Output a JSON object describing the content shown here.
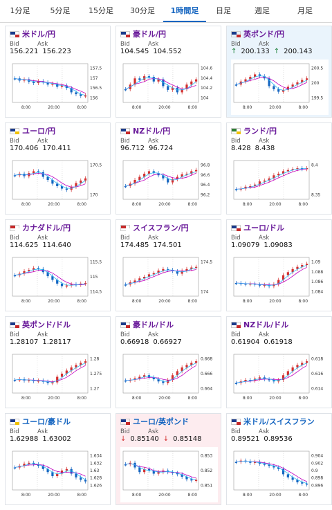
{
  "tabs": [
    {
      "label": "1分足",
      "active": false
    },
    {
      "label": "5分足",
      "active": false
    },
    {
      "label": "15分足",
      "active": false
    },
    {
      "label": "30分足",
      "active": false
    },
    {
      "label": "1時間足",
      "active": true
    },
    {
      "label": "日足",
      "active": false
    },
    {
      "label": "週足",
      "active": false
    },
    {
      "label": "月足",
      "active": false
    }
  ],
  "bid_label": "Bid",
  "ask_label": "Ask",
  "x_ticks": [
    "8:00",
    "20:00",
    "8:00"
  ],
  "cards": [
    {
      "pair": "米ドル/円",
      "bid": "156.221",
      "ask": "156.223",
      "dir": "",
      "flag": [
        "#1a3a8a",
        "#c62828"
      ],
      "y_ticks": [
        "157.5",
        "157",
        "156.5",
        "156"
      ],
      "trend": [
        0.35,
        0.42,
        0.38,
        0.46,
        0.5,
        0.44,
        0.48,
        0.55,
        0.52,
        0.62,
        0.58,
        0.66,
        0.8,
        0.86,
        0.92,
        0.9
      ],
      "hl": ""
    },
    {
      "pair": "豪ドル/円",
      "bid": "104.545",
      "ask": "104.552",
      "dir": "",
      "flag": [
        "#1a3a8a",
        "#c62828"
      ],
      "y_ticks": [
        "104.6",
        "104.4",
        "104.2",
        "104"
      ],
      "trend": [
        0.7,
        0.55,
        0.35,
        0.4,
        0.28,
        0.3,
        0.45,
        0.38,
        0.6,
        0.72,
        0.65,
        0.8,
        0.7,
        0.55,
        0.45,
        0.38
      ],
      "hl": ""
    },
    {
      "pair": "英ポンド/円",
      "bid": "200.133",
      "ask": "200.143",
      "dir": "up",
      "flag": [
        "#1a3a8a",
        "#c62828"
      ],
      "y_ticks": [
        "200.5",
        "200",
        "199.5"
      ],
      "trend": [
        0.55,
        0.45,
        0.38,
        0.3,
        0.22,
        0.28,
        0.35,
        0.6,
        0.7,
        0.78,
        0.72,
        0.62,
        0.55,
        0.48,
        0.4,
        0.35
      ],
      "hl": "blue"
    },
    {
      "pair": "ユーロ/円",
      "bid": "170.406",
      "ask": "170.411",
      "dir": "",
      "flag": [
        "#1a3a8a",
        "#f2c200"
      ],
      "y_ticks": [
        "170.5",
        "170"
      ],
      "trend": [
        0.35,
        0.3,
        0.38,
        0.28,
        0.22,
        0.25,
        0.4,
        0.5,
        0.62,
        0.7,
        0.78,
        0.82,
        0.72,
        0.6,
        0.52,
        0.45
      ],
      "hl": ""
    },
    {
      "pair": "NZドル/円",
      "bid": "96.712",
      "ask": "96.724",
      "dir": "",
      "flag": [
        "#1a3a8a",
        "#c62828"
      ],
      "y_ticks": [
        "96.8",
        "96.6",
        "96.4",
        "96.2"
      ],
      "trend": [
        0.7,
        0.62,
        0.5,
        0.4,
        0.3,
        0.22,
        0.28,
        0.35,
        0.45,
        0.58,
        0.48,
        0.4,
        0.32,
        0.3,
        0.22,
        0.18
      ],
      "hl": ""
    },
    {
      "pair": "ランド/円",
      "bid": "8.428",
      "ask": "8.438",
      "dir": "",
      "flag": [
        "#2e7d32",
        "#f2c200"
      ],
      "y_ticks": [
        "8.4",
        "8.35"
      ],
      "trend": [
        0.8,
        0.78,
        0.72,
        0.7,
        0.65,
        0.55,
        0.52,
        0.45,
        0.35,
        0.3,
        0.22,
        0.18,
        0.15,
        0.12,
        0.15,
        0.12
      ],
      "hl": ""
    },
    {
      "pair": "カナダドル/円",
      "bid": "114.625",
      "ask": "114.640",
      "dir": "",
      "flag": [
        "#c62828",
        "#ffffff"
      ],
      "y_ticks": [
        "115.5",
        "115",
        "114.5"
      ],
      "trend": [
        0.45,
        0.4,
        0.32,
        0.28,
        0.22,
        0.25,
        0.35,
        0.48,
        0.6,
        0.72,
        0.8,
        0.78,
        0.74,
        0.76,
        0.72,
        0.7
      ],
      "hl": ""
    },
    {
      "pair": "スイスフラン/円",
      "bid": "174.485",
      "ask": "174.501",
      "dir": "",
      "flag": [
        "#c62828",
        "#ffffff"
      ],
      "y_ticks": [
        "174.5",
        "174"
      ],
      "trend": [
        0.75,
        0.68,
        0.62,
        0.55,
        0.5,
        0.42,
        0.38,
        0.3,
        0.25,
        0.28,
        0.32,
        0.4,
        0.3,
        0.25,
        0.2,
        0.18
      ],
      "hl": ""
    },
    {
      "pair": "ユーロ/ドル",
      "bid": "1.09079",
      "ask": "1.09083",
      "dir": "",
      "flag": [
        "#1a3a8a",
        "#c62828"
      ],
      "y_ticks": [
        "1.09",
        "1.088",
        "1.086",
        "1.084"
      ],
      "trend": [
        0.7,
        0.72,
        0.74,
        0.72,
        0.75,
        0.78,
        0.76,
        0.8,
        0.74,
        0.6,
        0.45,
        0.35,
        0.25,
        0.18,
        0.12,
        0.08
      ],
      "hl": ""
    },
    {
      "pair": "英ポンド/ドル",
      "bid": "1.28107",
      "ask": "1.28117",
      "dir": "",
      "flag": [
        "#1a3a8a",
        "#c62828"
      ],
      "y_ticks": [
        "1.28",
        "1.275",
        "1.27"
      ],
      "trend": [
        0.7,
        0.68,
        0.72,
        0.7,
        0.74,
        0.72,
        0.76,
        0.8,
        0.78,
        0.6,
        0.5,
        0.4,
        0.3,
        0.22,
        0.15,
        0.1
      ],
      "hl": ""
    },
    {
      "pair": "豪ドル/ドル",
      "bid": "0.66918",
      "ask": "0.66927",
      "dir": "",
      "flag": [
        "#1a3a8a",
        "#c62828"
      ],
      "y_ticks": [
        "0.668",
        "0.666",
        "0.664"
      ],
      "trend": [
        0.72,
        0.7,
        0.65,
        0.6,
        0.55,
        0.62,
        0.68,
        0.75,
        0.8,
        0.7,
        0.55,
        0.42,
        0.3,
        0.22,
        0.15,
        0.1
      ],
      "hl": ""
    },
    {
      "pair": "NZドル/ドル",
      "bid": "0.61904",
      "ask": "0.61918",
      "dir": "",
      "flag": [
        "#1a3a8a",
        "#c62828"
      ],
      "y_ticks": [
        "0.618",
        "0.616",
        "0.614"
      ],
      "trend": [
        0.8,
        0.75,
        0.7,
        0.72,
        0.66,
        0.62,
        0.68,
        0.7,
        0.75,
        0.7,
        0.55,
        0.42,
        0.3,
        0.22,
        0.15,
        0.1
      ],
      "hl": ""
    },
    {
      "pair": "ユーロ/豪ドル",
      "bid": "1.62988",
      "ask": "1.63002",
      "dir": "",
      "flag": [
        "#1a3a8a",
        "#f2c200"
      ],
      "y_ticks": [
        "1.634",
        "1.632",
        "1.63",
        "1.628",
        "1.626"
      ],
      "trend": [
        0.4,
        0.35,
        0.28,
        0.25,
        0.3,
        0.35,
        0.45,
        0.55,
        0.68,
        0.6,
        0.5,
        0.45,
        0.6,
        0.72,
        0.8,
        0.85
      ],
      "hl": ""
    },
    {
      "pair": "ユーロ/英ポンド",
      "bid": "0.85140",
      "ask": "0.85148",
      "dir": "down",
      "flag": [
        "#1a3a8a",
        "#c62828"
      ],
      "y_ticks": [
        "0.853",
        "0.852",
        "0.851"
      ],
      "trend": [
        0.3,
        0.25,
        0.4,
        0.55,
        0.45,
        0.5,
        0.6,
        0.55,
        0.5,
        0.55,
        0.58,
        0.62,
        0.7,
        0.78,
        0.82,
        0.8
      ],
      "hl": "red"
    },
    {
      "pair": "米ドル/スイスフラン",
      "bid": "0.89521",
      "ask": "0.89536",
      "dir": "",
      "flag": [
        "#1a3a8a",
        "#c62828"
      ],
      "y_ticks": [
        "0.904",
        "0.902",
        "0.9",
        "0.898",
        "0.896"
      ],
      "trend": [
        0.22,
        0.18,
        0.2,
        0.25,
        0.22,
        0.28,
        0.3,
        0.35,
        0.4,
        0.45,
        0.62,
        0.72,
        0.8,
        0.88,
        0.92,
        0.95
      ],
      "hl": ""
    }
  ]
}
